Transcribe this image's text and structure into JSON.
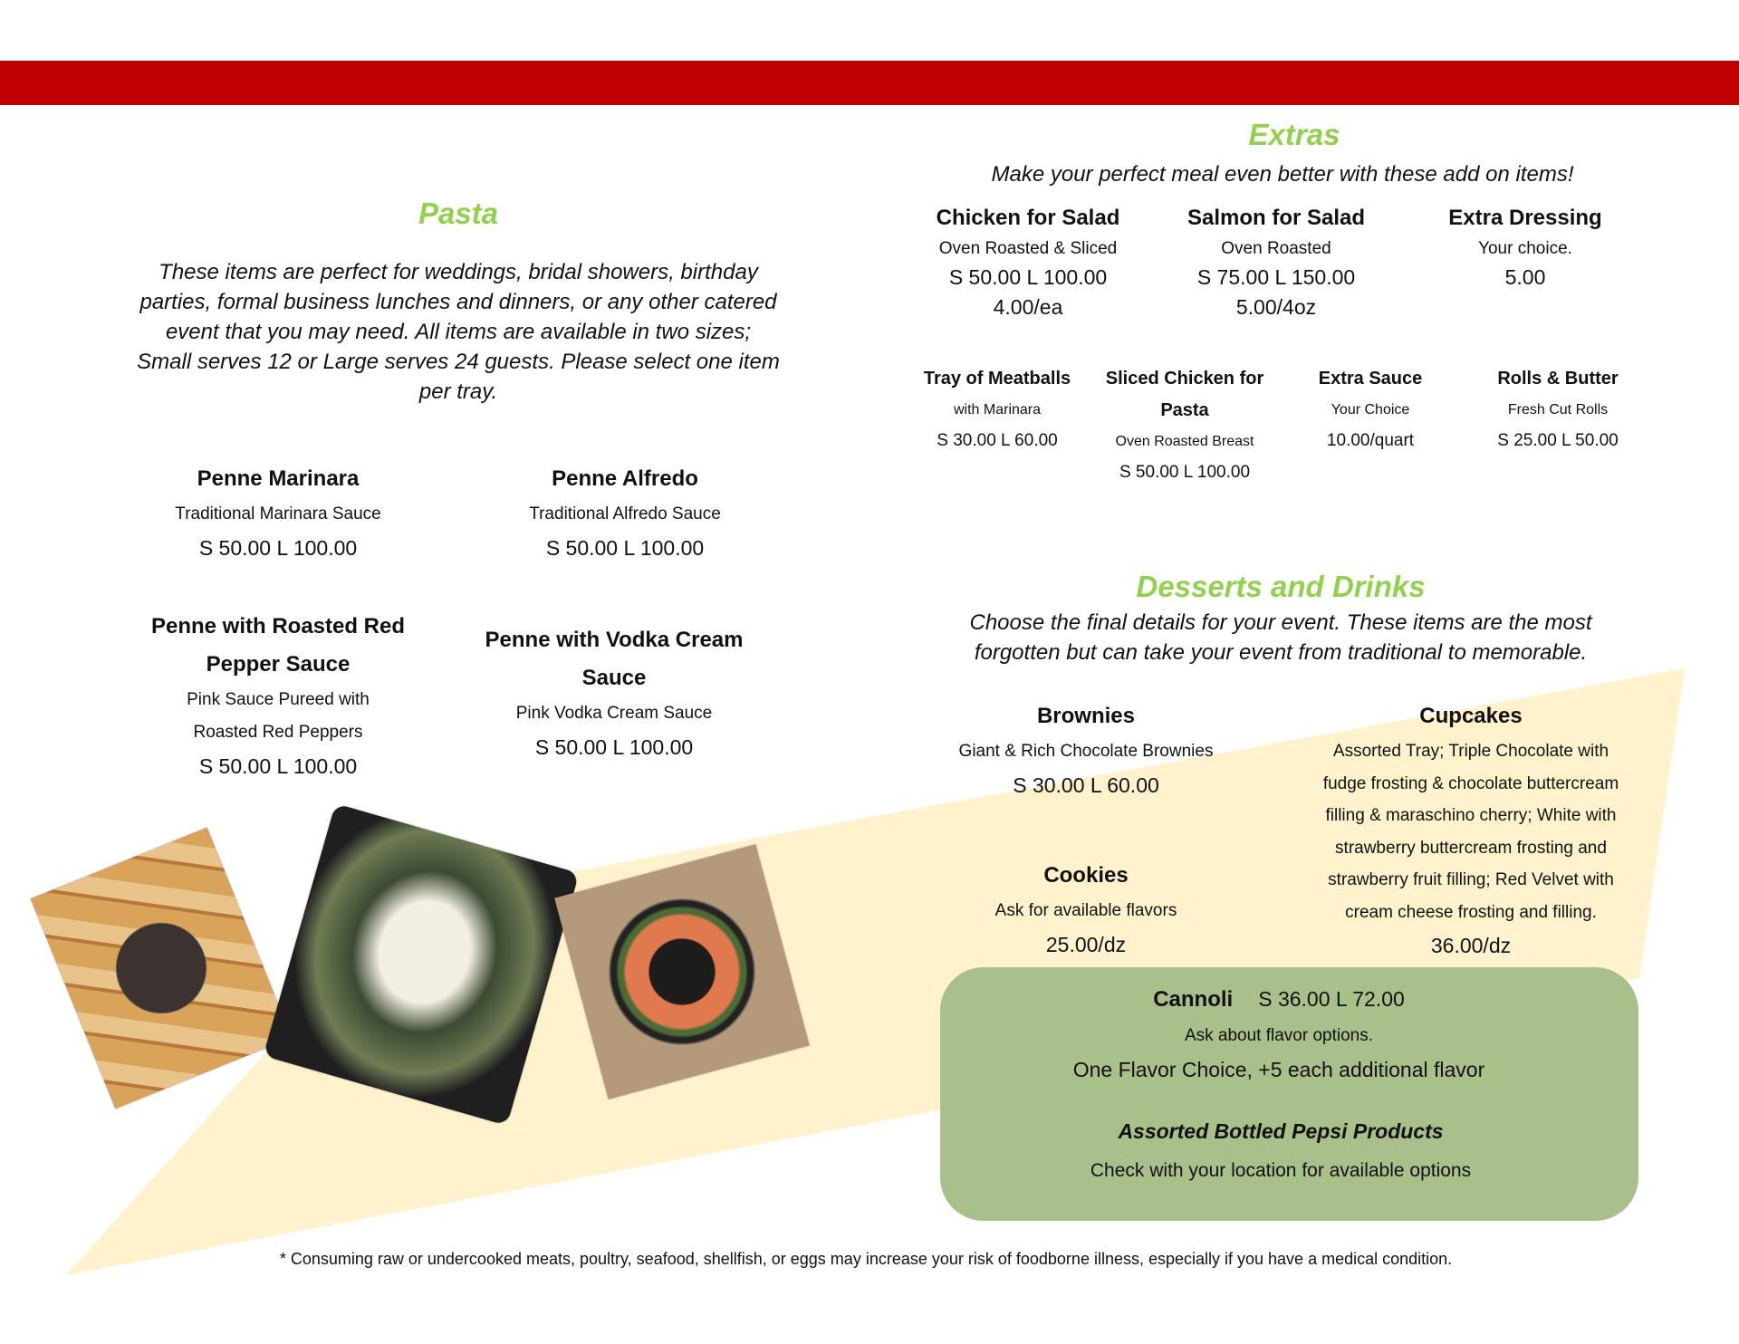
{
  "colors": {
    "banner": "#c00000",
    "heading": "#92d050",
    "band": "#fff2cc",
    "box": "#a9c08a"
  },
  "pasta": {
    "title": "Pasta",
    "description": [
      "These items are perfect for weddings, bridal showers, birthday",
      "parties, formal business lunches and dinners, or any other catered",
      "event that you may need.  All items are available in two sizes;",
      "Small serves 12 or Large serves 24 guests.  Please select one item",
      "per tray."
    ],
    "items": [
      {
        "name": [
          "Penne Marinara"
        ],
        "desc": [
          "Traditional Marinara Sauce"
        ],
        "price": "S 50.00  L  100.00"
      },
      {
        "name": [
          "Penne Alfredo"
        ],
        "desc": [
          "Traditional Alfredo Sauce"
        ],
        "price": "S 50.00  L  100.00"
      },
      {
        "name": [
          "Penne with Roasted Red",
          "Pepper Sauce"
        ],
        "desc": [
          "Pink Sauce Pureed with",
          "Roasted Red Peppers"
        ],
        "price": "S 50.00  L  100.00"
      },
      {
        "name": [
          "Penne with Vodka Cream",
          "Sauce"
        ],
        "desc": [
          "Pink Vodka Cream Sauce"
        ],
        "price": "S 50.00  L  100.00"
      }
    ]
  },
  "extras": {
    "title": "Extras",
    "subtitle": "Make your perfect meal even better with these add on items!",
    "row1": [
      {
        "name": "Chicken for Salad",
        "desc": "Oven Roasted & Sliced",
        "price": "S 50.00  L  100.00",
        "price2": "4.00/ea"
      },
      {
        "name": "Salmon for Salad",
        "desc": "Oven Roasted",
        "price": "S 75.00  L  150.00",
        "price2": "5.00/4oz"
      },
      {
        "name": "Extra Dressing",
        "desc": "Your choice.",
        "price": "5.00"
      }
    ],
    "row2": [
      {
        "name": [
          "Tray of Meatballs"
        ],
        "desc": "with Marinara",
        "price": "S 30.00 L  60.00"
      },
      {
        "name": [
          "Sliced Chicken for",
          "Pasta"
        ],
        "desc": "Oven Roasted Breast",
        "price": "S 50.00  L  100.00"
      },
      {
        "name": [
          "Extra Sauce"
        ],
        "desc": "Your Choice",
        "price": "10.00/quart"
      },
      {
        "name": [
          "Rolls & Butter"
        ],
        "desc": "Fresh Cut Rolls",
        "price": "S 25.00  L  50.00"
      }
    ]
  },
  "desserts": {
    "title": "Desserts and Drinks",
    "subtitle": [
      "Choose the final details for your event.  These items are the most",
      "forgotten but can take your event from traditional to memorable."
    ],
    "brownies": {
      "name": "Brownies",
      "desc": "Giant & Rich Chocolate Brownies",
      "price": "S 30.00  L  60.00"
    },
    "cookies": {
      "name": "Cookies",
      "desc": "Ask for available flavors",
      "price": "25.00/dz"
    },
    "cupcakes": {
      "name": "Cupcakes",
      "desc": [
        "Assorted Tray; Triple Chocolate with",
        "fudge frosting & chocolate buttercream",
        "filling & maraschino cherry; White with",
        "strawberry buttercream frosting and",
        "strawberry fruit filling; Red Velvet with",
        "cream cheese frosting and filling."
      ],
      "price": "36.00/dz"
    },
    "cannoli": {
      "name": "Cannoli",
      "price": "S 36.00   L  72.00",
      "desc": "Ask about flavor options.",
      "note": "One Flavor Choice, +5 each additional flavor"
    },
    "drinks": {
      "name": "Assorted Bottled Pepsi Products",
      "desc": "Check with your location for available options"
    }
  },
  "photos": [
    {
      "icon": "grilled-sandwiches-photo"
    },
    {
      "icon": "salad-tray-photo"
    },
    {
      "icon": "salmon-ring-photo"
    }
  ],
  "footer": "* Consuming raw or undercooked meats, poultry, seafood,  shellfish, or eggs may increase your risk of foodborne illness,  especially if you have a medical condition."
}
